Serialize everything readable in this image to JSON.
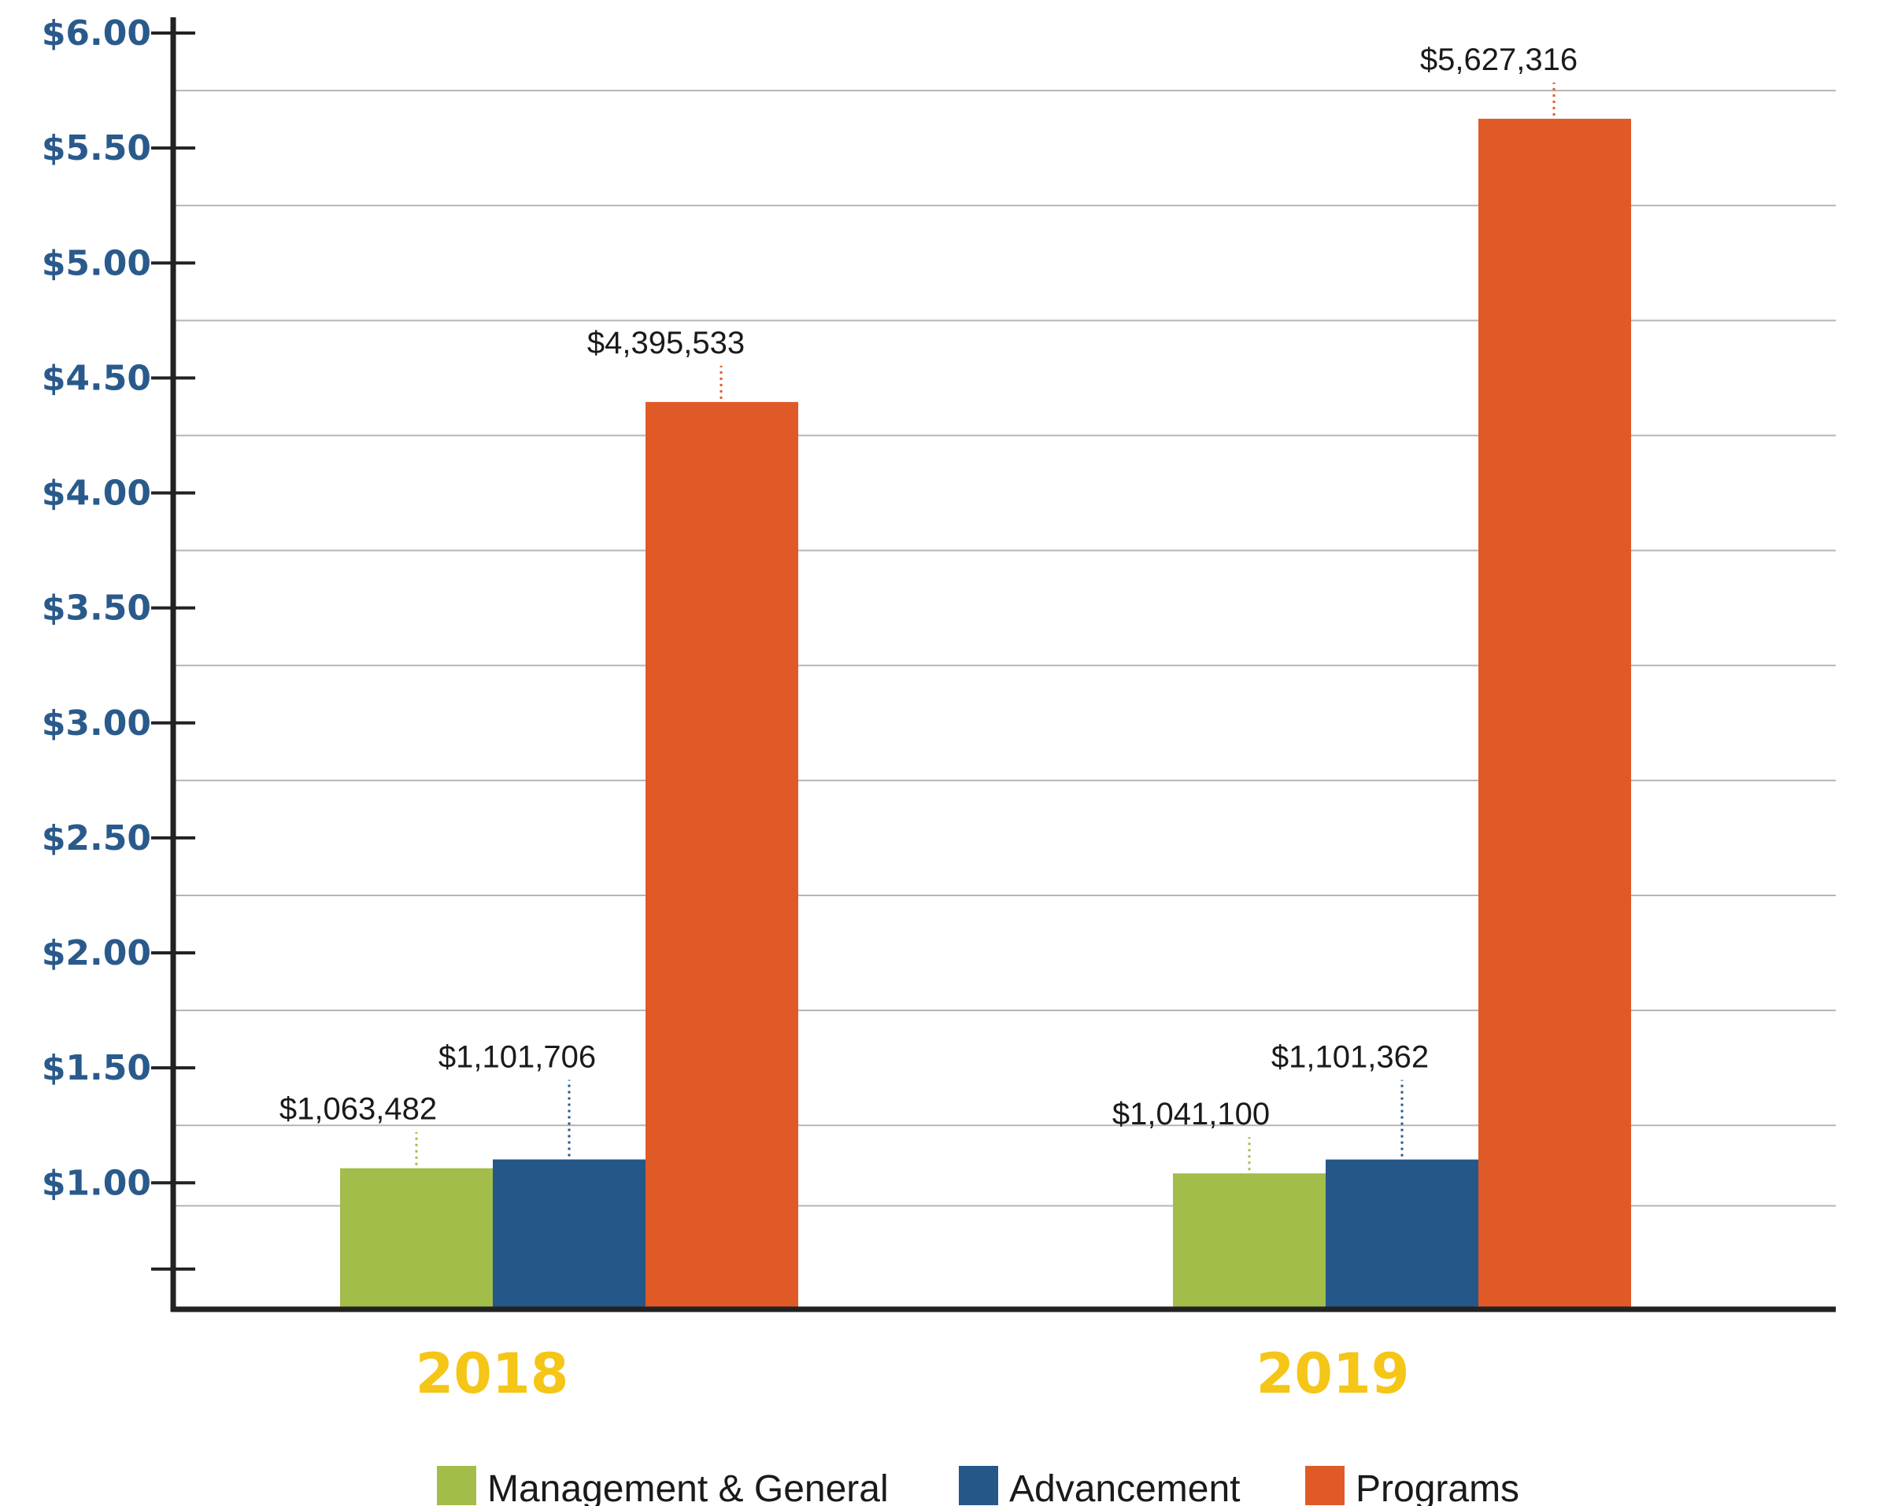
{
  "chart_data": {
    "type": "bar",
    "title": "",
    "xlabel": "",
    "ylabel": "",
    "categories": [
      "2018",
      "2019"
    ],
    "ylim": [
      0.45,
      6.0
    ],
    "yticks": [
      {
        "value": 6.0,
        "label": "$6.00"
      },
      {
        "value": 5.5,
        "label": "$5.50"
      },
      {
        "value": 5.0,
        "label": "$5.00"
      },
      {
        "value": 4.5,
        "label": "$4.50"
      },
      {
        "value": 4.0,
        "label": "$4.00"
      },
      {
        "value": 3.5,
        "label": "$3.50"
      },
      {
        "value": 3.0,
        "label": "$3.00"
      },
      {
        "value": 2.5,
        "label": "$2.50"
      },
      {
        "value": 2.0,
        "label": "$2.00"
      },
      {
        "value": 1.5,
        "label": "$1.50"
      },
      {
        "value": 1.0,
        "label": "$1.00"
      },
      {
        "value": 0.625,
        "label": ""
      }
    ],
    "grid": true,
    "legend_position": "bottom",
    "series": [
      {
        "name": "Management & General",
        "color": "#a3bd4b",
        "values": [
          1.063482,
          1.0411
        ],
        "labels": [
          "$1,063,482",
          "$1,041,100"
        ]
      },
      {
        "name": "Advancement",
        "color": "#255788",
        "values": [
          1.101706,
          1.101362
        ],
        "labels": [
          "$1,101,706",
          "$1,101,362"
        ]
      },
      {
        "name": "Programs",
        "color": "#e05a28",
        "values": [
          4.395533,
          5.627316
        ],
        "labels": [
          "$4,395,533",
          "$5,627,316"
        ]
      }
    ]
  }
}
